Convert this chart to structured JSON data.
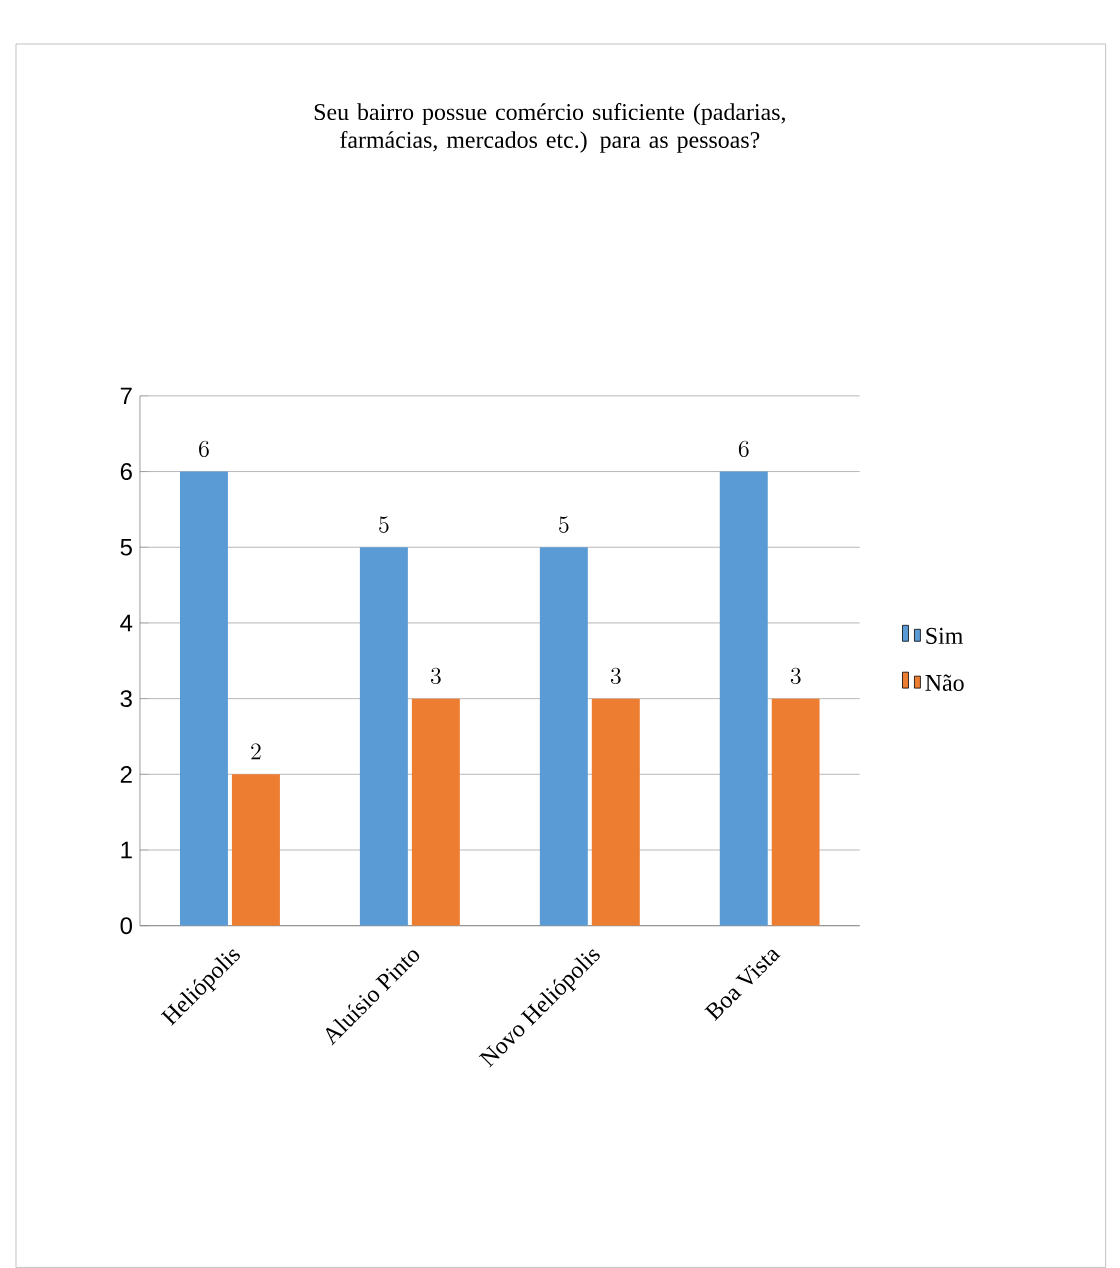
{
  "chart_data": {
    "type": "bar",
    "title": "Seu bairro possue comércio suficiente (padarias, farmácias, mercados etc.) para as pessoas?",
    "categories": [
      "Heliópolis",
      "Aluísio Pinto",
      "Novo Heliópolis",
      "Boa Vista"
    ],
    "series": [
      {
        "name": "Sim",
        "color": "#5b9bd5",
        "values": [
          6,
          5,
          5,
          6
        ]
      },
      {
        "name": "Não",
        "color": "#ed7d31",
        "values": [
          2,
          3,
          3,
          3
        ]
      }
    ],
    "ylim": [
      0,
      7
    ],
    "yticks": [
      0,
      1,
      2,
      3,
      4,
      5,
      6,
      7
    ],
    "grid": "y",
    "legend": "right",
    "data_labels": true
  }
}
